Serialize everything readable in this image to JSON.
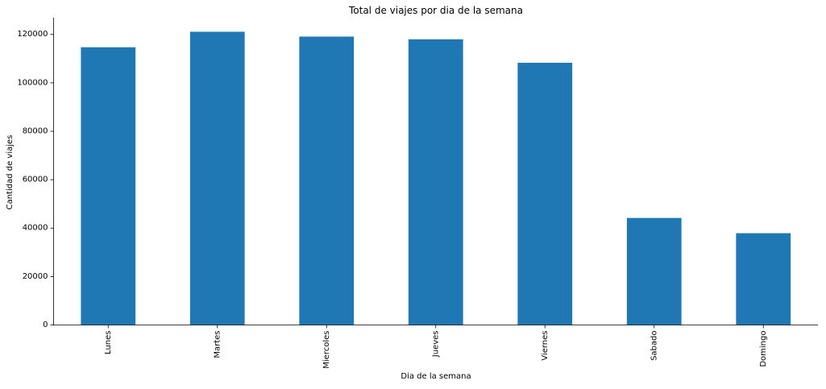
{
  "chart_data": {
    "type": "bar",
    "title": "Total de viajes por dia de la semana",
    "xlabel": "Dia de la semana",
    "ylabel": "Cantidad de viajes",
    "categories": [
      "Lunes",
      "Martes",
      "Miercoles",
      "Jueves",
      "Viernes",
      "Sabado",
      "Domingo"
    ],
    "values": [
      114700,
      121100,
      119100,
      118000,
      108300,
      44200,
      37900
    ],
    "ylim": [
      0,
      126900
    ],
    "yticks": [
      0,
      20000,
      40000,
      60000,
      80000,
      100000,
      120000
    ],
    "grid": false,
    "legend": "none",
    "colors": {
      "bar": "#1f77b4",
      "axis": "#000000"
    }
  }
}
